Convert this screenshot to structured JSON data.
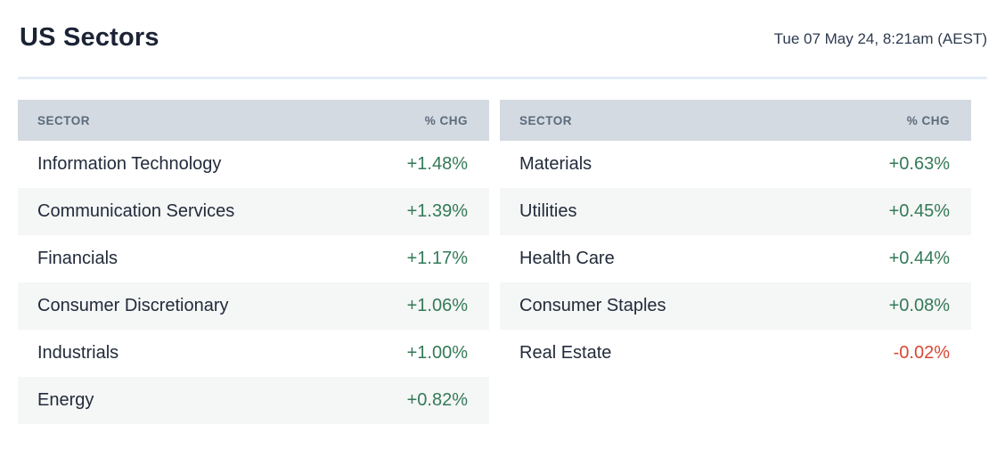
{
  "header": {
    "title": "US Sectors",
    "timestamp": "Tue 07 May 24, 8:21am (AEST)"
  },
  "columns": {
    "sector": "SECTOR",
    "chg": "% CHG"
  },
  "tables": [
    {
      "rows": [
        {
          "sector": "Information Technology",
          "chg": "+1.48%",
          "direction": "up"
        },
        {
          "sector": "Communication Services",
          "chg": "+1.39%",
          "direction": "up"
        },
        {
          "sector": "Financials",
          "chg": "+1.17%",
          "direction": "up"
        },
        {
          "sector": "Consumer Discretionary",
          "chg": "+1.06%",
          "direction": "up"
        },
        {
          "sector": "Industrials",
          "chg": "+1.00%",
          "direction": "up"
        },
        {
          "sector": "Energy",
          "chg": "+0.82%",
          "direction": "up"
        }
      ]
    },
    {
      "rows": [
        {
          "sector": "Materials",
          "chg": "+0.63%",
          "direction": "up"
        },
        {
          "sector": "Utilities",
          "chg": "+0.45%",
          "direction": "up"
        },
        {
          "sector": "Health Care",
          "chg": "+0.44%",
          "direction": "up"
        },
        {
          "sector": "Consumer Staples",
          "chg": "+0.08%",
          "direction": "up"
        },
        {
          "sector": "Real Estate",
          "chg": "-0.02%",
          "direction": "down"
        }
      ]
    }
  ],
  "theme": {
    "title": "#1b2335",
    "timestamp": "#2d3b4f",
    "divider": "#e3ecf6",
    "header-bg": "#d4dae1",
    "header-text": "#5b6b7c",
    "row-text": "#222b3a",
    "stripe": "#f5f6f6",
    "positive": "#337a58",
    "negative": "#da4734"
  }
}
